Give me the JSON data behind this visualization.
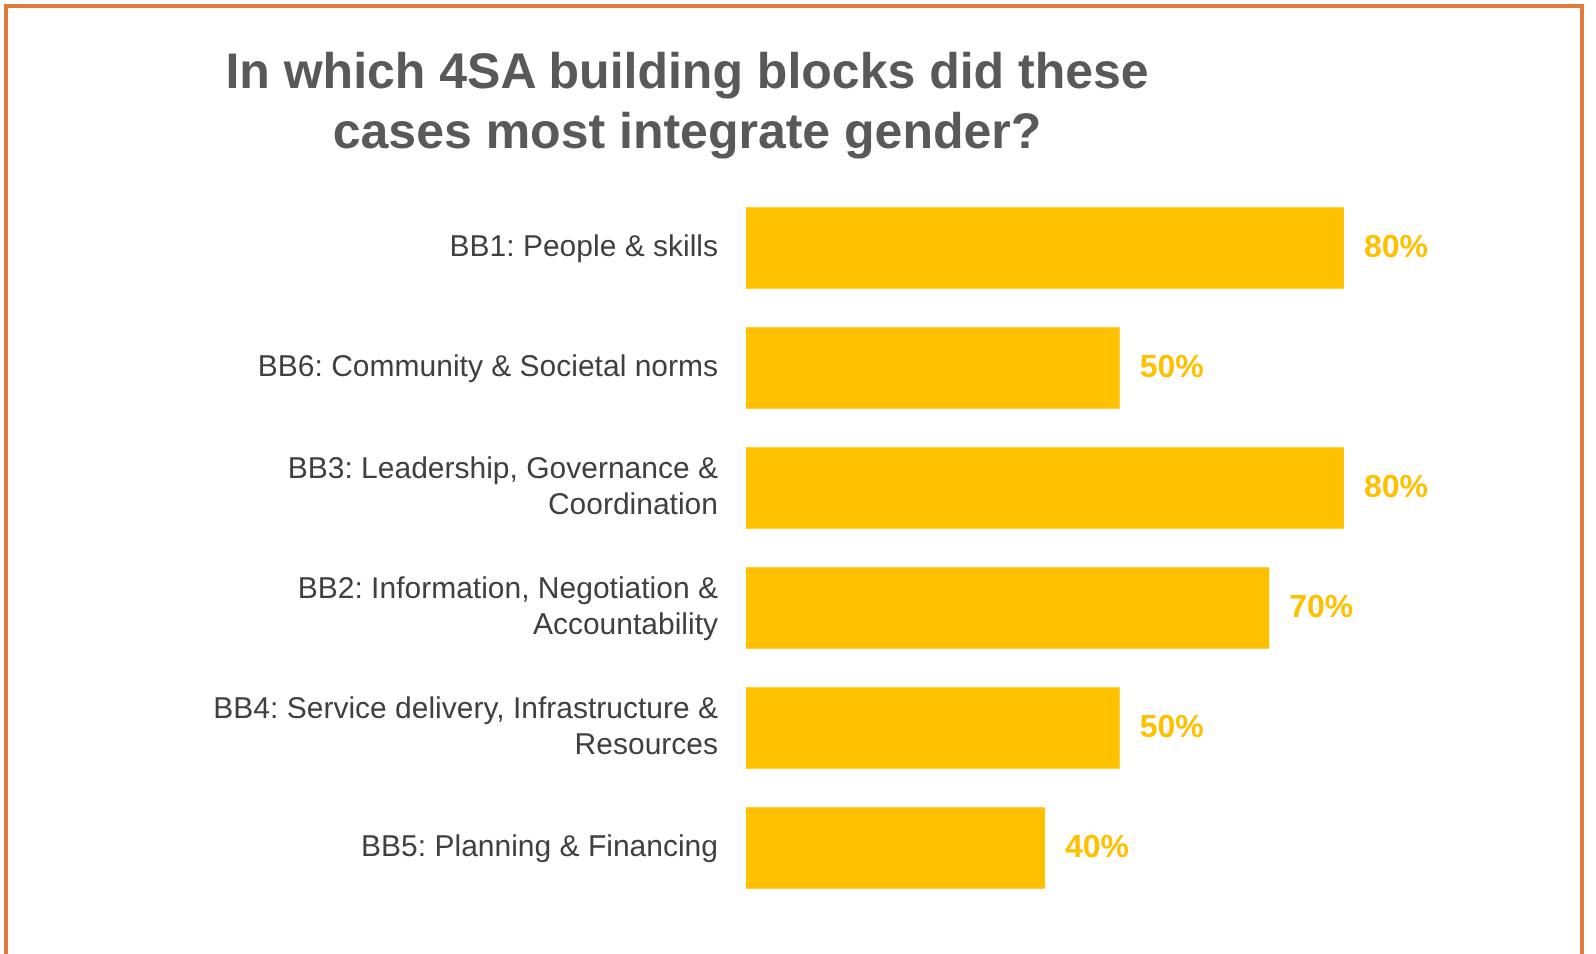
{
  "chart_data": {
    "type": "bar",
    "orientation": "horizontal",
    "title": "In which 4SA building blocks did these cases most integrate gender?",
    "categories": [
      "BB1: People & skills",
      "BB6: Community & Societal norms",
      "BB3: Leadership, Governance & Coordination",
      "BB2: Information, Negotiation & Accountability",
      "BB4: Service delivery, Infrastructure & Resources",
      "BB5: Planning & Financing"
    ],
    "values": [
      80,
      50,
      80,
      70,
      50,
      40
    ],
    "value_labels": [
      "80%",
      "50%",
      "80%",
      "70%",
      "50%",
      "40%"
    ],
    "color": "#ffc000",
    "legend": false,
    "tick_labels": "y"
  }
}
